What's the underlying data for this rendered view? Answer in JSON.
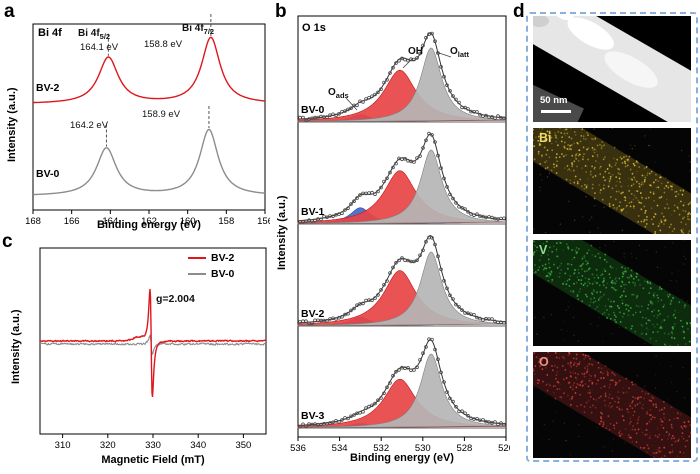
{
  "panels": {
    "a": {
      "tag": "a",
      "peak1_base": "Bi 4f",
      "peak1_sub": "5/2",
      "peak2_base": "Bi 4f",
      "peak2_sub": "7/2"
    },
    "b": {
      "tag": "b",
      "oads_base": "O",
      "oads_sub": "ads",
      "oh_label": "OH",
      "olatt_base": "O",
      "olatt_sub": "latt"
    },
    "c": {
      "tag": "c"
    },
    "d": {
      "tag": "d",
      "scale_bar": "50 nm",
      "maps": [
        {
          "label": "Bi",
          "dark": "#38300e",
          "bright": "#e0c43c",
          "text": "#eeda6e"
        },
        {
          "label": "V",
          "dark": "#0d2c0d",
          "bright": "#44bb44",
          "text": "#93dd93"
        },
        {
          "label": "O",
          "dark": "#351010",
          "bright": "#d84438",
          "text": "#ee9288"
        }
      ]
    }
  },
  "chart_data": [
    {
      "id": "a",
      "type": "line",
      "title": "Bi 4f",
      "xlabel": "Binding energy (eV)",
      "ylabel": "Intensity (a.u.)",
      "x_range_ev": [
        168,
        156
      ],
      "x_ticks": [
        168,
        166,
        164,
        162,
        160,
        158,
        156
      ],
      "peak_scale_frac": 0.355,
      "series": [
        {
          "name": "BV-2",
          "color": "#e0161b",
          "baseline_frac": 0.57,
          "peaks": [
            {
              "label": "Bi 4f5/2",
              "center_eV": 164.1,
              "rel_height": 0.7,
              "hwhm_eV": 0.62,
              "annotation": "164.1 eV"
            },
            {
              "label": "Bi 4f7/2",
              "center_eV": 158.8,
              "rel_height": 1.0,
              "hwhm_eV": 0.58,
              "annotation": "158.8 eV"
            }
          ]
        },
        {
          "name": "BV-0",
          "color": "#8c8c8c",
          "baseline_frac": 0.075,
          "peaks": [
            {
              "label": "Bi 4f5/2",
              "center_eV": 164.2,
              "rel_height": 0.72,
              "hwhm_eV": 0.62,
              "annotation": "164.2 eV"
            },
            {
              "label": "Bi 4f7/2",
              "center_eV": 158.9,
              "rel_height": 1.0,
              "hwhm_eV": 0.58,
              "annotation": "158.9 eV"
            }
          ]
        }
      ]
    },
    {
      "id": "b",
      "type": "area",
      "title": "O 1s",
      "xlabel": "Binding energy (eV)",
      "ylabel": "Intensity (a.u.)",
      "x_range_ev": [
        536,
        526
      ],
      "x_ticks": [
        536,
        534,
        532,
        530,
        528,
        526
      ],
      "components": [
        {
          "name": "Oads",
          "color": "#4169c8",
          "edge": "#2a4fa8",
          "center_eV": 533.0,
          "hwhm_eV": 0.6
        },
        {
          "name": "OH",
          "color": "#e84444",
          "edge": "#c01818",
          "center_eV": 531.1,
          "hwhm_eV": 0.95
        },
        {
          "name": "Olatt",
          "color": "#b5b5b5",
          "edge": "#7e7e7e",
          "center_eV": 529.6,
          "hwhm_eV": 0.62
        }
      ],
      "spectra": [
        {
          "name": "BV-0",
          "rel_heights": [
            0.1,
            0.7,
            1.0
          ]
        },
        {
          "name": "BV-1",
          "rel_heights": [
            0.22,
            0.72,
            1.0
          ]
        },
        {
          "name": "BV-2",
          "rel_heights": [
            0.12,
            0.75,
            1.0
          ]
        },
        {
          "name": "BV-3",
          "rel_heights": [
            0.06,
            0.66,
            1.0
          ]
        }
      ]
    },
    {
      "id": "c",
      "type": "line",
      "xlabel": "Magnetic Field (mT)",
      "ylabel": "Intensity (a.u.)",
      "x_range_mT": [
        305,
        355
      ],
      "x_ticks": [
        310,
        320,
        330,
        340,
        350
      ],
      "g_label": "g=2.004",
      "signal_center_mT": 329.6,
      "signal_hwhm_mT": 0.45,
      "series": [
        {
          "name": "BV-2",
          "color": "#e0161b",
          "baseline": 109,
          "amp_up": 52,
          "amp_down": 57,
          "noise": 1.0,
          "shoulder": 3.5
        },
        {
          "name": "BV-0",
          "color": "#8c8c8c",
          "baseline": 112,
          "amp_up": 8,
          "amp_down": 10,
          "noise": 1.5,
          "shoulder": 0
        }
      ]
    }
  ]
}
